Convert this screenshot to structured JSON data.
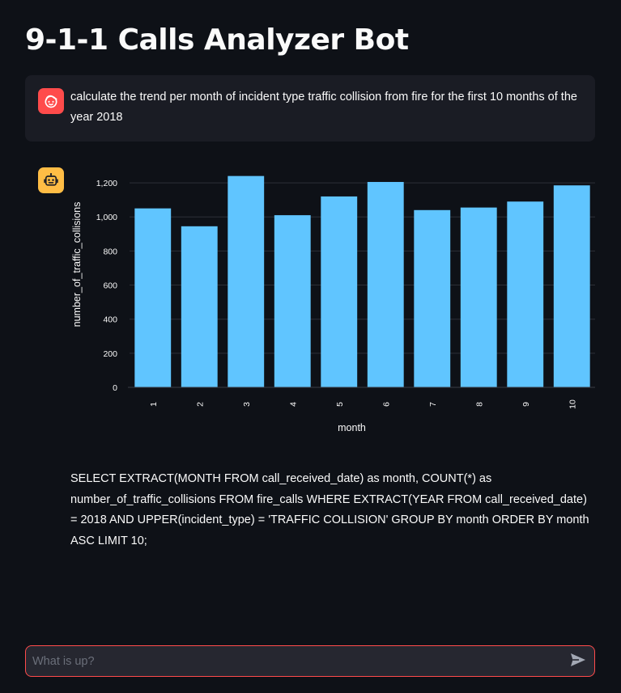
{
  "app": {
    "title": "9-1-1 Calls Analyzer Bot"
  },
  "chat": {
    "messages": [
      {
        "role": "user",
        "avatar_icon": "user-face-icon",
        "avatar_color": "#ff4b4b",
        "text": "calculate the trend per month of incident type traffic collision from fire for the first 10 months of the year 2018"
      },
      {
        "role": "assistant",
        "avatar_icon": "robot-icon",
        "avatar_color": "#ffbd45",
        "sql": "SELECT EXTRACT(MONTH FROM call_received_date) as month, COUNT(*) as number_of_traffic_collisions FROM fire_calls WHERE EXTRACT(YEAR FROM call_received_date) = 2018 AND UPPER(incident_type) = 'TRAFFIC COLLISION' GROUP BY month ORDER BY month ASC LIMIT 10;"
      }
    ]
  },
  "input": {
    "placeholder": "What is up?",
    "value": "",
    "send_icon": "send-icon"
  },
  "colors": {
    "background": "#0e1117",
    "accent": "#ff4b4b",
    "bar": "#60c5ff",
    "bot_avatar": "#ffbd45"
  },
  "chart_data": {
    "type": "bar",
    "categories": [
      "1",
      "2",
      "3",
      "4",
      "5",
      "6",
      "7",
      "8",
      "9",
      "10"
    ],
    "values": [
      1050,
      945,
      1240,
      1010,
      1120,
      1205,
      1040,
      1055,
      1090,
      1185
    ],
    "title": "",
    "xlabel": "month",
    "ylabel": "number_of_traffic_collisions",
    "ylim": [
      0,
      1200
    ],
    "yticks": [
      0,
      200,
      400,
      600,
      800,
      1000,
      1200
    ],
    "ytick_labels": [
      "0",
      "200",
      "400",
      "600",
      "800",
      "1,000",
      "1,200"
    ],
    "grid": true,
    "legend": "none"
  }
}
